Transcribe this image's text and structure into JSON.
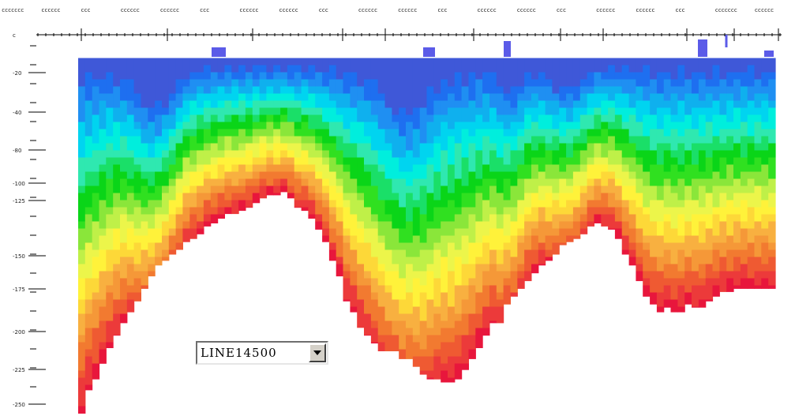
{
  "chart_data": {
    "type": "heatmap",
    "title": "",
    "xlabel": "",
    "ylabel": "",
    "x_tick_labels": [
      "ccccccc",
      "cccccc",
      "ccc",
      "cccccc",
      "cccccc",
      "ccc",
      "cccccc",
      "cccccc",
      "ccc",
      "cccccc",
      "cccccc",
      "ccc",
      "cccccc",
      "cccccc",
      "ccc",
      "cccccc",
      "cccccc",
      "ccc",
      "ccccccc",
      "cccccc"
    ],
    "y_tick_labels": [
      "c",
      "-20",
      "-40",
      "-80",
      "-100",
      "-125",
      "-150",
      "-175",
      "-200",
      "-225",
      "-250"
    ],
    "depth_range": [
      0,
      250
    ],
    "surface_depth": [
      22,
      22,
      22,
      22,
      22,
      22,
      22,
      22,
      22,
      22,
      22,
      22,
      22,
      22,
      22,
      22,
      22,
      22,
      22,
      22,
      22,
      22,
      22,
      22,
      22,
      22,
      22,
      22,
      22,
      22,
      22,
      22,
      22,
      22,
      22,
      22,
      22,
      22,
      22,
      22,
      22,
      22,
      22,
      22,
      22,
      22,
      22,
      22,
      22,
      22,
      22,
      22,
      22,
      22,
      22,
      22,
      22,
      22,
      22,
      22,
      22,
      22,
      22,
      22,
      22,
      22,
      22,
      22,
      22,
      22,
      22,
      22,
      22,
      22,
      22,
      22,
      22,
      22,
      22,
      22,
      22,
      22,
      22,
      22,
      22,
      22,
      22,
      22,
      22,
      22,
      22,
      22,
      22,
      22,
      22,
      22,
      22,
      22,
      22
    ],
    "bottom_depth": [
      250,
      235,
      228,
      218,
      208,
      200,
      192,
      185,
      178,
      170,
      162,
      155,
      152,
      148,
      145,
      140,
      138,
      135,
      130,
      128,
      125,
      122,
      122,
      120,
      118,
      115,
      112,
      110,
      110,
      108,
      112,
      118,
      120,
      125,
      132,
      140,
      152,
      162,
      178,
      185,
      195,
      200,
      205,
      210,
      210,
      210,
      215,
      215,
      220,
      225,
      228,
      228,
      230,
      230,
      228,
      222,
      215,
      208,
      200,
      192,
      192,
      180,
      175,
      170,
      165,
      160,
      155,
      152,
      148,
      142,
      140,
      138,
      135,
      130,
      128,
      130,
      132,
      138,
      148,
      155,
      165,
      175,
      180,
      185,
      182,
      185,
      185,
      180,
      182,
      182,
      178,
      175,
      172,
      172,
      170,
      170,
      170,
      170,
      170,
      170
    ],
    "peaks": [
      {
        "x": 0.11,
        "y": 40,
        "w": 0.035
      },
      {
        "x": 0.47,
        "y": 40,
        "w": 0.04
      },
      {
        "x": 0.7,
        "y": 20,
        "w": 0.03
      },
      {
        "x": 0.62,
        "y": 20,
        "w": 0.02
      }
    ],
    "color_scale": [
      "#3f58d8",
      "#1e6ff0",
      "#1f8ff2",
      "#0fb0ee",
      "#00d4f0",
      "#00eedd",
      "#2fe8b0",
      "#1adf68",
      "#0ad518",
      "#30e020",
      "#8ae63a",
      "#bff048",
      "#ecf54a",
      "#fff23a",
      "#fdd838",
      "#f8b040",
      "#f59838",
      "#f27a30",
      "#ef5a32",
      "#ec3a3a",
      "#e8163c"
    ]
  },
  "line_selector": {
    "value": "LINE14500",
    "arrow_icon": "chevron-down-icon"
  }
}
